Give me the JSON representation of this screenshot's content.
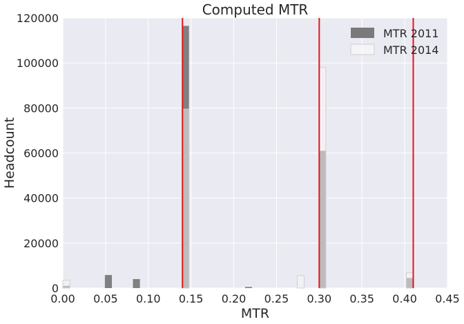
{
  "chart_data": {
    "type": "bar",
    "title": "Computed MTR",
    "xlabel": "MTR",
    "ylabel": "Headcount",
    "xlim": [
      0,
      0.45
    ],
    "ylim": [
      0,
      120000
    ],
    "xticks": [
      "0.00",
      "0.05",
      "0.10",
      "0.15",
      "0.20",
      "0.25",
      "0.30",
      "0.35",
      "0.40",
      "0.45"
    ],
    "yticks": [
      "0",
      "20000",
      "40000",
      "60000",
      "80000",
      "100000",
      "120000"
    ],
    "grid": true,
    "legend_position": "top-right",
    "bin_width": 0.0082,
    "series": [
      {
        "name": "MTR 2011",
        "color": "#7a7a7a",
        "bars": [
          {
            "x": 0.0,
            "y": 1000
          },
          {
            "x": 0.0492,
            "y": 5800
          },
          {
            "x": 0.082,
            "y": 4000
          },
          {
            "x": 0.1394,
            "y": 116500
          },
          {
            "x": 0.2132,
            "y": 500
          },
          {
            "x": 0.2996,
            "y": 61000
          },
          {
            "x": 0.4018,
            "y": 4500
          }
        ]
      },
      {
        "name": "MTR 2014",
        "color": "#f7f7f7",
        "bars": [
          {
            "x": 0.0,
            "y": 3500
          },
          {
            "x": 0.1394,
            "y": 79500
          },
          {
            "x": 0.2742,
            "y": 5500
          },
          {
            "x": 0.2996,
            "y": 98000
          },
          {
            "x": 0.4018,
            "y": 6800
          }
        ]
      }
    ],
    "reference_lines": [
      {
        "x": 0.14,
        "color": "#e8121c"
      },
      {
        "x": 0.3,
        "color": "#e8121c"
      },
      {
        "x": 0.41,
        "color": "#e8121c"
      }
    ]
  }
}
